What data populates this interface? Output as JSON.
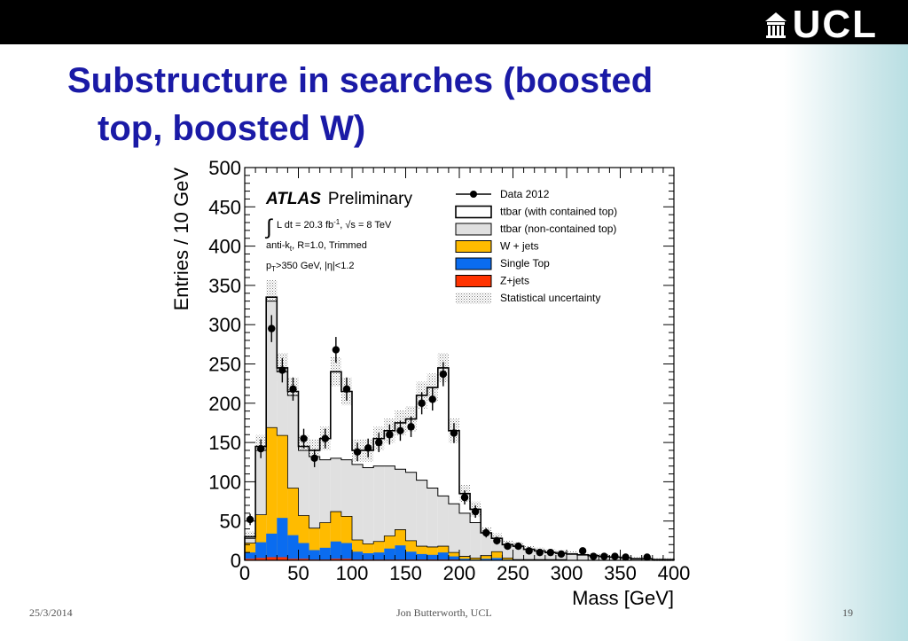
{
  "slide": {
    "title_line1": "Substructure in searches (boosted",
    "title_line2": "top, boosted W)",
    "footer_date": "25/3/2014",
    "footer_author": "Jon Butterworth, UCL",
    "footer_page": "19",
    "logo_text": "UCL",
    "title_color": "#1a1aa6"
  },
  "chart_data": {
    "type": "bar",
    "xlabel": "Mass [GeV]",
    "ylabel": "Entries / 10 GeV",
    "xlim": [
      0,
      400
    ],
    "ylim": [
      0,
      500
    ],
    "x_ticks": [
      "0",
      "50",
      "100",
      "150",
      "200",
      "250",
      "300",
      "350",
      "400"
    ],
    "y_ticks": [
      "0",
      "50",
      "100",
      "150",
      "200",
      "250",
      "300",
      "350",
      "400",
      "450",
      "500"
    ],
    "annotations": {
      "experiment": "ATLAS",
      "status": "Preliminary",
      "lumi_prefix": "L dt = 20.3 fb",
      "lumi_exp": "-1",
      "sqrt_s": "√s = 8 TeV",
      "algo_prefix": "anti-k",
      "algo_sub": "t",
      "algo_rest": ", R=1.0, Trimmed",
      "cut_prefix": "p",
      "cut_sub": "T",
      "cut_rest": ">350 GeV, |η|<1.2"
    },
    "legend_position": "top-right",
    "bin_width": 10,
    "bins_x": [
      0,
      10,
      20,
      30,
      40,
      50,
      60,
      70,
      80,
      90,
      100,
      110,
      120,
      130,
      140,
      150,
      160,
      170,
      180,
      190,
      200,
      210,
      220,
      230,
      240,
      250,
      260,
      270,
      280,
      290,
      300,
      310,
      320,
      330,
      340,
      350,
      360,
      370,
      380,
      390
    ],
    "series": [
      {
        "name": "Data 2012",
        "style": "points",
        "color": "#000000",
        "x": [
          5,
          15,
          25,
          35,
          45,
          55,
          65,
          75,
          85,
          95,
          105,
          115,
          125,
          135,
          145,
          155,
          165,
          175,
          185,
          195,
          205,
          215,
          225,
          235,
          245,
          255,
          265,
          275,
          285,
          295,
          315,
          325,
          335,
          345,
          355,
          375
        ],
        "values": [
          52,
          142,
          295,
          242,
          218,
          155,
          130,
          155,
          268,
          218,
          138,
          143,
          150,
          160,
          165,
          170,
          200,
          205,
          237,
          162,
          80,
          62,
          35,
          25,
          18,
          18,
          12,
          10,
          10,
          8,
          12,
          5,
          5,
          5,
          4,
          4
        ]
      },
      {
        "name": "ttbar (with contained top)",
        "style": "step",
        "color": "#ffffff",
        "values": [
          30,
          145,
          335,
          245,
          215,
          145,
          140,
          155,
          240,
          215,
          140,
          140,
          155,
          165,
          175,
          180,
          210,
          220,
          245,
          165,
          85,
          65,
          35,
          28,
          20,
          18,
          14,
          12,
          10,
          9,
          8,
          7,
          6,
          5,
          4,
          3,
          2,
          2,
          1,
          1
        ]
      },
      {
        "name": "ttbar (non-contained top)",
        "style": "fill",
        "color": "#e0e0e0",
        "values": [
          28,
          140,
          330,
          240,
          210,
          140,
          132,
          128,
          130,
          128,
          122,
          118,
          120,
          120,
          116,
          112,
          102,
          92,
          82,
          72,
          60,
          48,
          35,
          28,
          20,
          18,
          14,
          12,
          10,
          9,
          8,
          7,
          6,
          5,
          4,
          3,
          2,
          2,
          1,
          1
        ]
      },
      {
        "name": "W + jets",
        "style": "fill",
        "color": "#ffbb00",
        "values": [
          12,
          35,
          135,
          105,
          60,
          35,
          28,
          32,
          38,
          34,
          15,
          12,
          14,
          16,
          20,
          14,
          10,
          10,
          8,
          5,
          3,
          2,
          4,
          8,
          2,
          1,
          1,
          1,
          1,
          1,
          0,
          0,
          0,
          0,
          0,
          0,
          0,
          0,
          0,
          0
        ]
      },
      {
        "name": "Single Top",
        "style": "fill",
        "color": "#0a6cf0",
        "values": [
          8,
          20,
          30,
          50,
          30,
          20,
          12,
          15,
          22,
          20,
          10,
          8,
          9,
          14,
          18,
          10,
          7,
          6,
          9,
          4,
          2,
          1,
          2,
          3,
          1,
          0,
          0,
          0,
          0,
          0,
          0,
          0,
          0,
          0,
          0,
          0,
          0,
          0,
          0,
          0
        ]
      },
      {
        "name": "Z+jets",
        "style": "fill",
        "color": "#ff3300",
        "values": [
          2,
          3,
          4,
          4,
          2,
          2,
          1,
          1,
          2,
          2,
          1,
          1,
          1,
          1,
          1,
          1,
          1,
          1,
          1,
          1,
          0,
          0,
          0,
          0,
          0,
          0,
          0,
          0,
          0,
          0,
          0,
          0,
          0,
          0,
          0,
          0,
          0,
          0,
          0,
          0
        ]
      },
      {
        "name": "Statistical uncertainty",
        "style": "hatch",
        "color": "#808080"
      }
    ]
  }
}
